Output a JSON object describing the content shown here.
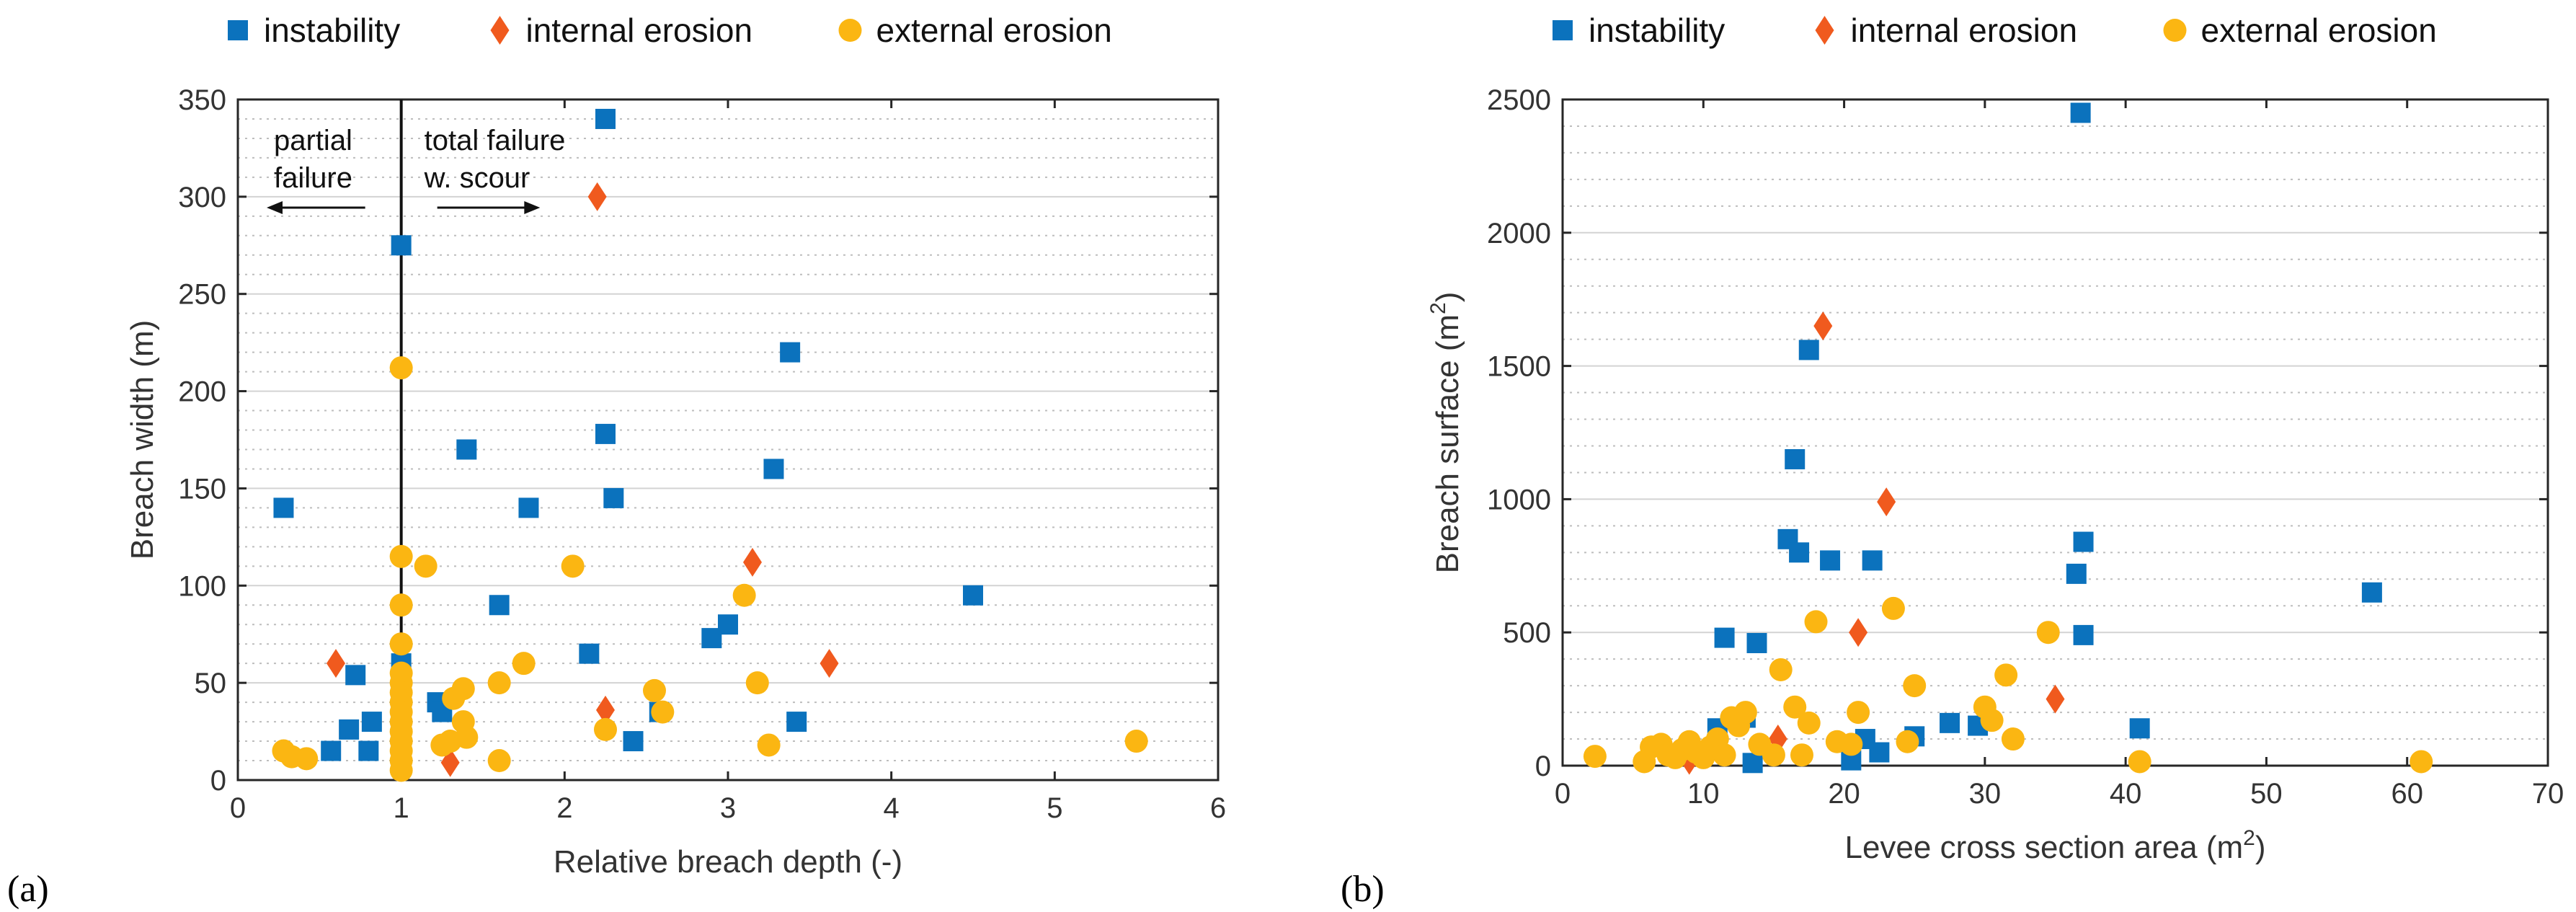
{
  "chart_data": [
    {
      "type": "scatter",
      "panel_label": "(a)",
      "title": "",
      "xlabel": "Relative breach depth (-)",
      "ylabel": "Breach width (m)",
      "xlim": [
        0,
        6
      ],
      "ylim": [
        0,
        350
      ],
      "xticks": [
        "0",
        "1",
        "2",
        "3",
        "4",
        "5",
        "6"
      ],
      "yticks": [
        "0",
        "50",
        "100",
        "150",
        "200",
        "250",
        "300",
        "350"
      ],
      "grid": "horizontal major solid, minor dotted",
      "legend_position": "top",
      "annotations": {
        "left_label_line1": "partial",
        "left_label_line2": "failure",
        "right_label_line1": "total failure",
        "right_label_line2": "w. scour",
        "divider_x": 1
      },
      "series": [
        {
          "name": "instability",
          "marker": "square",
          "color": "#0b72bd",
          "points": [
            [
              0.28,
              140
            ],
            [
              0.72,
              54
            ],
            [
              0.57,
              15
            ],
            [
              0.8,
              15
            ],
            [
              0.68,
              26
            ],
            [
              0.82,
              30
            ],
            [
              1.0,
              275
            ],
            [
              1.0,
              60
            ],
            [
              1.0,
              45
            ],
            [
              1.0,
              40
            ],
            [
              1.0,
              30
            ],
            [
              1.22,
              40
            ],
            [
              1.25,
              35
            ],
            [
              1.4,
              170
            ],
            [
              1.6,
              90
            ],
            [
              1.78,
              140
            ],
            [
              2.15,
              65
            ],
            [
              2.25,
              340
            ],
            [
              2.25,
              178
            ],
            [
              2.3,
              145
            ],
            [
              2.42,
              20
            ],
            [
              2.58,
              35
            ],
            [
              2.9,
              73
            ],
            [
              3.0,
              80
            ],
            [
              3.28,
              160
            ],
            [
              3.38,
              220
            ],
            [
              3.42,
              30
            ],
            [
              4.5,
              95
            ]
          ]
        },
        {
          "name": "internal erosion",
          "marker": "diamond",
          "color": "#f05a1e",
          "points": [
            [
              0.6,
              60
            ],
            [
              1.3,
              9
            ],
            [
              2.2,
              300
            ],
            [
              2.25,
              36
            ],
            [
              3.15,
              112
            ],
            [
              3.62,
              60
            ]
          ]
        },
        {
          "name": "external erosion",
          "marker": "circle",
          "color": "#fbb612",
          "points": [
            [
              0.28,
              15
            ],
            [
              0.33,
              12
            ],
            [
              0.42,
              11
            ],
            [
              1.0,
              212
            ],
            [
              1.0,
              115
            ],
            [
              1.0,
              90
            ],
            [
              1.0,
              70
            ],
            [
              1.0,
              55
            ],
            [
              1.0,
              50
            ],
            [
              1.0,
              45
            ],
            [
              1.0,
              40
            ],
            [
              1.0,
              35
            ],
            [
              1.0,
              30
            ],
            [
              1.0,
              25
            ],
            [
              1.0,
              20
            ],
            [
              1.0,
              15
            ],
            [
              1.0,
              10
            ],
            [
              1.0,
              5
            ],
            [
              1.15,
              110
            ],
            [
              1.25,
              18
            ],
            [
              1.3,
              20
            ],
            [
              1.32,
              42
            ],
            [
              1.38,
              47
            ],
            [
              1.38,
              30
            ],
            [
              1.4,
              22
            ],
            [
              1.6,
              50
            ],
            [
              1.6,
              10
            ],
            [
              1.75,
              60
            ],
            [
              2.05,
              110
            ],
            [
              2.25,
              26
            ],
            [
              2.55,
              46
            ],
            [
              2.6,
              35
            ],
            [
              3.1,
              95
            ],
            [
              3.18,
              50
            ],
            [
              3.25,
              18
            ],
            [
              5.5,
              20
            ]
          ]
        }
      ]
    },
    {
      "type": "scatter",
      "panel_label": "(b)",
      "title": "",
      "xlabel": "Levee cross section area (m2)",
      "ylabel": "Breach surface (m2)",
      "xlim": [
        0,
        70
      ],
      "ylim": [
        0,
        2500
      ],
      "xticks": [
        "0",
        "10",
        "20",
        "30",
        "40",
        "50",
        "60",
        "70"
      ],
      "yticks": [
        "0",
        "500",
        "1000",
        "1500",
        "2000",
        "2500"
      ],
      "grid": "horizontal major solid, minor dotted",
      "legend_position": "top",
      "series": [
        {
          "name": "instability",
          "marker": "square",
          "color": "#0b72bd",
          "points": [
            [
              11.5,
              480
            ],
            [
              13.8,
              460
            ],
            [
              16.0,
              850
            ],
            [
              16.5,
              1150
            ],
            [
              16.8,
              800
            ],
            [
              17.5,
              1560
            ],
            [
              19.0,
              770
            ],
            [
              22.0,
              770
            ],
            [
              36.8,
              2450
            ],
            [
              36.5,
              720
            ],
            [
              37.0,
              840
            ],
            [
              37.0,
              490
            ],
            [
              57.5,
              650
            ],
            [
              41.0,
              140
            ],
            [
              11.0,
              140
            ],
            [
              13.0,
              180
            ],
            [
              13.5,
              10
            ],
            [
              20.5,
              20
            ],
            [
              21.5,
              100
            ],
            [
              22.5,
              50
            ],
            [
              25.0,
              110
            ],
            [
              27.5,
              160
            ],
            [
              29.5,
              150
            ]
          ]
        },
        {
          "name": "internal erosion",
          "marker": "diamond",
          "color": "#f05a1e",
          "points": [
            [
              18.5,
              1650
            ],
            [
              23.0,
              990
            ],
            [
              21.0,
              500
            ],
            [
              35.0,
              250
            ],
            [
              15.3,
              100
            ],
            [
              9.0,
              20
            ]
          ]
        },
        {
          "name": "external erosion",
          "marker": "circle",
          "color": "#fbb612",
          "points": [
            [
              2.3,
              35
            ],
            [
              5.8,
              15
            ],
            [
              6.3,
              70
            ],
            [
              7.0,
              80
            ],
            [
              7.5,
              40
            ],
            [
              8.0,
              30
            ],
            [
              8.5,
              60
            ],
            [
              9.0,
              90
            ],
            [
              9.5,
              50
            ],
            [
              10.0,
              30
            ],
            [
              10.5,
              70
            ],
            [
              11.0,
              100
            ],
            [
              11.5,
              40
            ],
            [
              12.0,
              180
            ],
            [
              12.5,
              150
            ],
            [
              13.0,
              200
            ],
            [
              14.0,
              80
            ],
            [
              15.0,
              40
            ],
            [
              15.5,
              360
            ],
            [
              16.5,
              220
            ],
            [
              17.0,
              40
            ],
            [
              17.5,
              160
            ],
            [
              18.0,
              540
            ],
            [
              19.5,
              90
            ],
            [
              20.5,
              80
            ],
            [
              21.0,
              200
            ],
            [
              23.5,
              590
            ],
            [
              24.5,
              90
            ],
            [
              25.0,
              300
            ],
            [
              30.0,
              220
            ],
            [
              30.5,
              170
            ],
            [
              31.5,
              340
            ],
            [
              32.0,
              100
            ],
            [
              34.5,
              500
            ],
            [
              41.0,
              15
            ],
            [
              61.0,
              15
            ]
          ]
        }
      ]
    }
  ]
}
